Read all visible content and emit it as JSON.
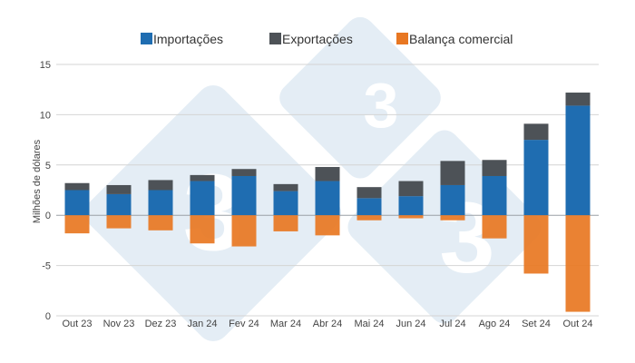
{
  "chart_data": {
    "type": "bar",
    "stacked": true,
    "ylabel": "Milhões de dólares",
    "ylim": [
      -10,
      15
    ],
    "yticks": [
      15,
      10,
      5,
      0,
      -5
    ],
    "bottom_tick_label": "0",
    "grid": true,
    "legend_position": "top",
    "categories": [
      "Out 23",
      "Nov 23",
      "Dez 23",
      "Jan 24",
      "Fev 24",
      "Mar 24",
      "Abr 24",
      "Mai 24",
      "Jun 24",
      "Jul 24",
      "Ago 24",
      "Set 24",
      "Out 24"
    ],
    "series": [
      {
        "name": "Importações",
        "color": "#1f6db1",
        "values": [
          2.5,
          2.1,
          2.5,
          3.4,
          3.9,
          2.4,
          3.4,
          1.7,
          1.9,
          3.0,
          3.9,
          7.5,
          10.9
        ]
      },
      {
        "name": "Exportações",
        "color": "#4d5257",
        "values": [
          0.7,
          0.9,
          1.0,
          0.6,
          0.7,
          0.7,
          1.4,
          1.1,
          1.5,
          2.4,
          1.6,
          1.6,
          1.3
        ]
      },
      {
        "name": "Balança comercial",
        "color": "#e87722",
        "values": [
          -1.8,
          -1.3,
          -1.5,
          -2.8,
          -3.1,
          -1.6,
          -2.0,
          -0.5,
          -0.3,
          -0.5,
          -2.3,
          -5.8,
          -9.6
        ]
      }
    ]
  }
}
